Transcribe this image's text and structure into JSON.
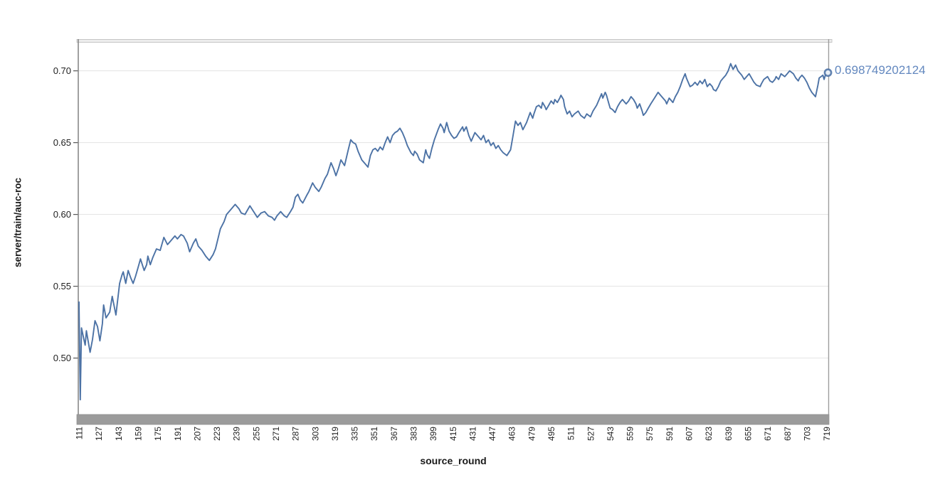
{
  "chart": {
    "y_axis_title": "server/train/auc-roc",
    "x_axis_title": "source_round",
    "end_value_label": "0.698749202124"
  },
  "chart_data": {
    "type": "line",
    "title": "",
    "xlabel": "source_round",
    "ylabel": "server/train/auc-roc",
    "legend": "none",
    "grid": "horizontal",
    "xlim": [
      110.4,
      721.0
    ],
    "ylim": [
      0.4607,
      0.7211
    ],
    "x_ticks": [
      111,
      127,
      143,
      159,
      175,
      191,
      207,
      223,
      239,
      255,
      271,
      287,
      303,
      319,
      335,
      351,
      367,
      383,
      399,
      415,
      431,
      447,
      463,
      479,
      495,
      511,
      527,
      543,
      559,
      575,
      591,
      607,
      623,
      639,
      655,
      671,
      687,
      703,
      719
    ],
    "y_ticks": [
      0.5,
      0.55,
      0.6,
      0.65,
      0.7
    ],
    "colors": {
      "line": "#4c72a5",
      "end_label": "#6388bf",
      "grid": "#e3e3e3",
      "axis_left": "#888888",
      "axis_right": "#9d9d9d",
      "top_bar_fill": "#ededed",
      "top_bar_edge": "#c6c6c6",
      "bottom_bar_fill": "#9b9b9b",
      "bottom_bar_edge": "#8e8e8e",
      "tick_text": "#222222",
      "marker_fill": "#e9eff6"
    },
    "end_annotation": {
      "x": 719,
      "y": 0.698749202124,
      "text": "0.698749202124"
    },
    "series": [
      {
        "name": "server/train/auc-roc",
        "points": [
          [
            111,
            0.539
          ],
          [
            112,
            0.471
          ],
          [
            113,
            0.521
          ],
          [
            115,
            0.513
          ],
          [
            116,
            0.509
          ],
          [
            117,
            0.519
          ],
          [
            118,
            0.514
          ],
          [
            120,
            0.504
          ],
          [
            122,
            0.513
          ],
          [
            124,
            0.526
          ],
          [
            126,
            0.522
          ],
          [
            128,
            0.512
          ],
          [
            130,
            0.524
          ],
          [
            131,
            0.537
          ],
          [
            133,
            0.528
          ],
          [
            136,
            0.532
          ],
          [
            138,
            0.543
          ],
          [
            141,
            0.53
          ],
          [
            144,
            0.552
          ],
          [
            146,
            0.558
          ],
          [
            147,
            0.56
          ],
          [
            149,
            0.552
          ],
          [
            151,
            0.561
          ],
          [
            153,
            0.556
          ],
          [
            155,
            0.552
          ],
          [
            157,
            0.557
          ],
          [
            159,
            0.563
          ],
          [
            161,
            0.569
          ],
          [
            164,
            0.561
          ],
          [
            166,
            0.565
          ],
          [
            167,
            0.571
          ],
          [
            169,
            0.565
          ],
          [
            171,
            0.57
          ],
          [
            174,
            0.576
          ],
          [
            177,
            0.575
          ],
          [
            180,
            0.584
          ],
          [
            183,
            0.579
          ],
          [
            186,
            0.582
          ],
          [
            189,
            0.585
          ],
          [
            191,
            0.583
          ],
          [
            194,
            0.586
          ],
          [
            196,
            0.585
          ],
          [
            199,
            0.58
          ],
          [
            201,
            0.574
          ],
          [
            204,
            0.58
          ],
          [
            206,
            0.583
          ],
          [
            208,
            0.578
          ],
          [
            211,
            0.575
          ],
          [
            214,
            0.571
          ],
          [
            217,
            0.568
          ],
          [
            220,
            0.572
          ],
          [
            222,
            0.576
          ],
          [
            226,
            0.59
          ],
          [
            229,
            0.595
          ],
          [
            231,
            0.6
          ],
          [
            234,
            0.603
          ],
          [
            238,
            0.607
          ],
          [
            241,
            0.604
          ],
          [
            243,
            0.601
          ],
          [
            246,
            0.6
          ],
          [
            248,
            0.603
          ],
          [
            250,
            0.606
          ],
          [
            253,
            0.602
          ],
          [
            256,
            0.598
          ],
          [
            259,
            0.601
          ],
          [
            262,
            0.602
          ],
          [
            265,
            0.599
          ],
          [
            268,
            0.598
          ],
          [
            270,
            0.596
          ],
          [
            272,
            0.599
          ],
          [
            275,
            0.602
          ],
          [
            278,
            0.599
          ],
          [
            280,
            0.598
          ],
          [
            283,
            0.602
          ],
          [
            285,
            0.605
          ],
          [
            287,
            0.612
          ],
          [
            289,
            0.614
          ],
          [
            291,
            0.61
          ],
          [
            293,
            0.608
          ],
          [
            296,
            0.613
          ],
          [
            298,
            0.616
          ],
          [
            301,
            0.622
          ],
          [
            303,
            0.619
          ],
          [
            306,
            0.616
          ],
          [
            308,
            0.619
          ],
          [
            311,
            0.625
          ],
          [
            313,
            0.628
          ],
          [
            316,
            0.636
          ],
          [
            318,
            0.632
          ],
          [
            320,
            0.627
          ],
          [
            322,
            0.632
          ],
          [
            324,
            0.638
          ],
          [
            327,
            0.634
          ],
          [
            330,
            0.645
          ],
          [
            332,
            0.652
          ],
          [
            334,
            0.65
          ],
          [
            336,
            0.649
          ],
          [
            338,
            0.644
          ],
          [
            341,
            0.638
          ],
          [
            344,
            0.635
          ],
          [
            346,
            0.633
          ],
          [
            348,
            0.641
          ],
          [
            350,
            0.645
          ],
          [
            352,
            0.646
          ],
          [
            354,
            0.644
          ],
          [
            356,
            0.647
          ],
          [
            358,
            0.645
          ],
          [
            360,
            0.65
          ],
          [
            362,
            0.654
          ],
          [
            364,
            0.65
          ],
          [
            366,
            0.655
          ],
          [
            368,
            0.657
          ],
          [
            370,
            0.658
          ],
          [
            372,
            0.66
          ],
          [
            374,
            0.657
          ],
          [
            376,
            0.653
          ],
          [
            378,
            0.648
          ],
          [
            381,
            0.643
          ],
          [
            383,
            0.641
          ],
          [
            384,
            0.644
          ],
          [
            386,
            0.642
          ],
          [
            388,
            0.638
          ],
          [
            391,
            0.636
          ],
          [
            393,
            0.645
          ],
          [
            394,
            0.642
          ],
          [
            396,
            0.639
          ],
          [
            398,
            0.646
          ],
          [
            400,
            0.652
          ],
          [
            403,
            0.659
          ],
          [
            405,
            0.663
          ],
          [
            407,
            0.66
          ],
          [
            408,
            0.657
          ],
          [
            410,
            0.664
          ],
          [
            412,
            0.658
          ],
          [
            414,
            0.655
          ],
          [
            416,
            0.653
          ],
          [
            418,
            0.654
          ],
          [
            420,
            0.657
          ],
          [
            423,
            0.661
          ],
          [
            424,
            0.658
          ],
          [
            426,
            0.661
          ],
          [
            428,
            0.655
          ],
          [
            430,
            0.651
          ],
          [
            433,
            0.657
          ],
          [
            436,
            0.654
          ],
          [
            438,
            0.652
          ],
          [
            440,
            0.655
          ],
          [
            442,
            0.65
          ],
          [
            444,
            0.652
          ],
          [
            446,
            0.648
          ],
          [
            448,
            0.65
          ],
          [
            450,
            0.646
          ],
          [
            452,
            0.648
          ],
          [
            454,
            0.645
          ],
          [
            456,
            0.643
          ],
          [
            459,
            0.641
          ],
          [
            462,
            0.645
          ],
          [
            464,
            0.655
          ],
          [
            466,
            0.665
          ],
          [
            468,
            0.662
          ],
          [
            470,
            0.664
          ],
          [
            472,
            0.659
          ],
          [
            475,
            0.664
          ],
          [
            478,
            0.671
          ],
          [
            480,
            0.667
          ],
          [
            481,
            0.67
          ],
          [
            483,
            0.675
          ],
          [
            485,
            0.676
          ],
          [
            487,
            0.674
          ],
          [
            488,
            0.678
          ],
          [
            490,
            0.675
          ],
          [
            491,
            0.673
          ],
          [
            493,
            0.676
          ],
          [
            495,
            0.679
          ],
          [
            497,
            0.677
          ],
          [
            498,
            0.68
          ],
          [
            500,
            0.678
          ],
          [
            502,
            0.681
          ],
          [
            503,
            0.683
          ],
          [
            505,
            0.68
          ],
          [
            506,
            0.675
          ],
          [
            508,
            0.67
          ],
          [
            510,
            0.672
          ],
          [
            512,
            0.668
          ],
          [
            514,
            0.67
          ],
          [
            517,
            0.672
          ],
          [
            519,
            0.669
          ],
          [
            522,
            0.667
          ],
          [
            524,
            0.67
          ],
          [
            527,
            0.668
          ],
          [
            529,
            0.672
          ],
          [
            532,
            0.676
          ],
          [
            534,
            0.68
          ],
          [
            536,
            0.684
          ],
          [
            537,
            0.681
          ],
          [
            539,
            0.685
          ],
          [
            540,
            0.683
          ],
          [
            542,
            0.677
          ],
          [
            543,
            0.674
          ],
          [
            545,
            0.673
          ],
          [
            547,
            0.671
          ],
          [
            549,
            0.675
          ],
          [
            551,
            0.678
          ],
          [
            553,
            0.68
          ],
          [
            556,
            0.677
          ],
          [
            558,
            0.679
          ],
          [
            560,
            0.682
          ],
          [
            562,
            0.68
          ],
          [
            564,
            0.677
          ],
          [
            565,
            0.674
          ],
          [
            567,
            0.677
          ],
          [
            569,
            0.672
          ],
          [
            570,
            0.669
          ],
          [
            572,
            0.671
          ],
          [
            574,
            0.674
          ],
          [
            576,
            0.677
          ],
          [
            579,
            0.681
          ],
          [
            582,
            0.685
          ],
          [
            584,
            0.683
          ],
          [
            586,
            0.681
          ],
          [
            588,
            0.679
          ],
          [
            589,
            0.677
          ],
          [
            591,
            0.681
          ],
          [
            593,
            0.679
          ],
          [
            594,
            0.678
          ],
          [
            596,
            0.682
          ],
          [
            598,
            0.685
          ],
          [
            600,
            0.689
          ],
          [
            602,
            0.694
          ],
          [
            604,
            0.698
          ],
          [
            605,
            0.695
          ],
          [
            607,
            0.691
          ],
          [
            608,
            0.689
          ],
          [
            610,
            0.69
          ],
          [
            612,
            0.692
          ],
          [
            614,
            0.69
          ],
          [
            616,
            0.693
          ],
          [
            618,
            0.691
          ],
          [
            620,
            0.694
          ],
          [
            622,
            0.689
          ],
          [
            624,
            0.691
          ],
          [
            626,
            0.689
          ],
          [
            627,
            0.687
          ],
          [
            629,
            0.686
          ],
          [
            631,
            0.689
          ],
          [
            633,
            0.693
          ],
          [
            635,
            0.695
          ],
          [
            637,
            0.697
          ],
          [
            639,
            0.7
          ],
          [
            641,
            0.705
          ],
          [
            643,
            0.701
          ],
          [
            645,
            0.704
          ],
          [
            647,
            0.7
          ],
          [
            650,
            0.697
          ],
          [
            652,
            0.694
          ],
          [
            654,
            0.696
          ],
          [
            656,
            0.698
          ],
          [
            658,
            0.695
          ],
          [
            660,
            0.692
          ],
          [
            662,
            0.69
          ],
          [
            665,
            0.689
          ],
          [
            666,
            0.691
          ],
          [
            668,
            0.694
          ],
          [
            671,
            0.696
          ],
          [
            673,
            0.693
          ],
          [
            675,
            0.692
          ],
          [
            677,
            0.694
          ],
          [
            678,
            0.696
          ],
          [
            680,
            0.694
          ],
          [
            682,
            0.698
          ],
          [
            685,
            0.696
          ],
          [
            687,
            0.698
          ],
          [
            689,
            0.7
          ],
          [
            692,
            0.698
          ],
          [
            694,
            0.695
          ],
          [
            696,
            0.693
          ],
          [
            697,
            0.695
          ],
          [
            699,
            0.697
          ],
          [
            701,
            0.695
          ],
          [
            703,
            0.692
          ],
          [
            705,
            0.688
          ],
          [
            707,
            0.685
          ],
          [
            710,
            0.682
          ],
          [
            712,
            0.69
          ],
          [
            713,
            0.695
          ],
          [
            716,
            0.697
          ],
          [
            717,
            0.694
          ],
          [
            718,
            0.697
          ],
          [
            719,
            0.698749202124
          ]
        ]
      }
    ]
  }
}
